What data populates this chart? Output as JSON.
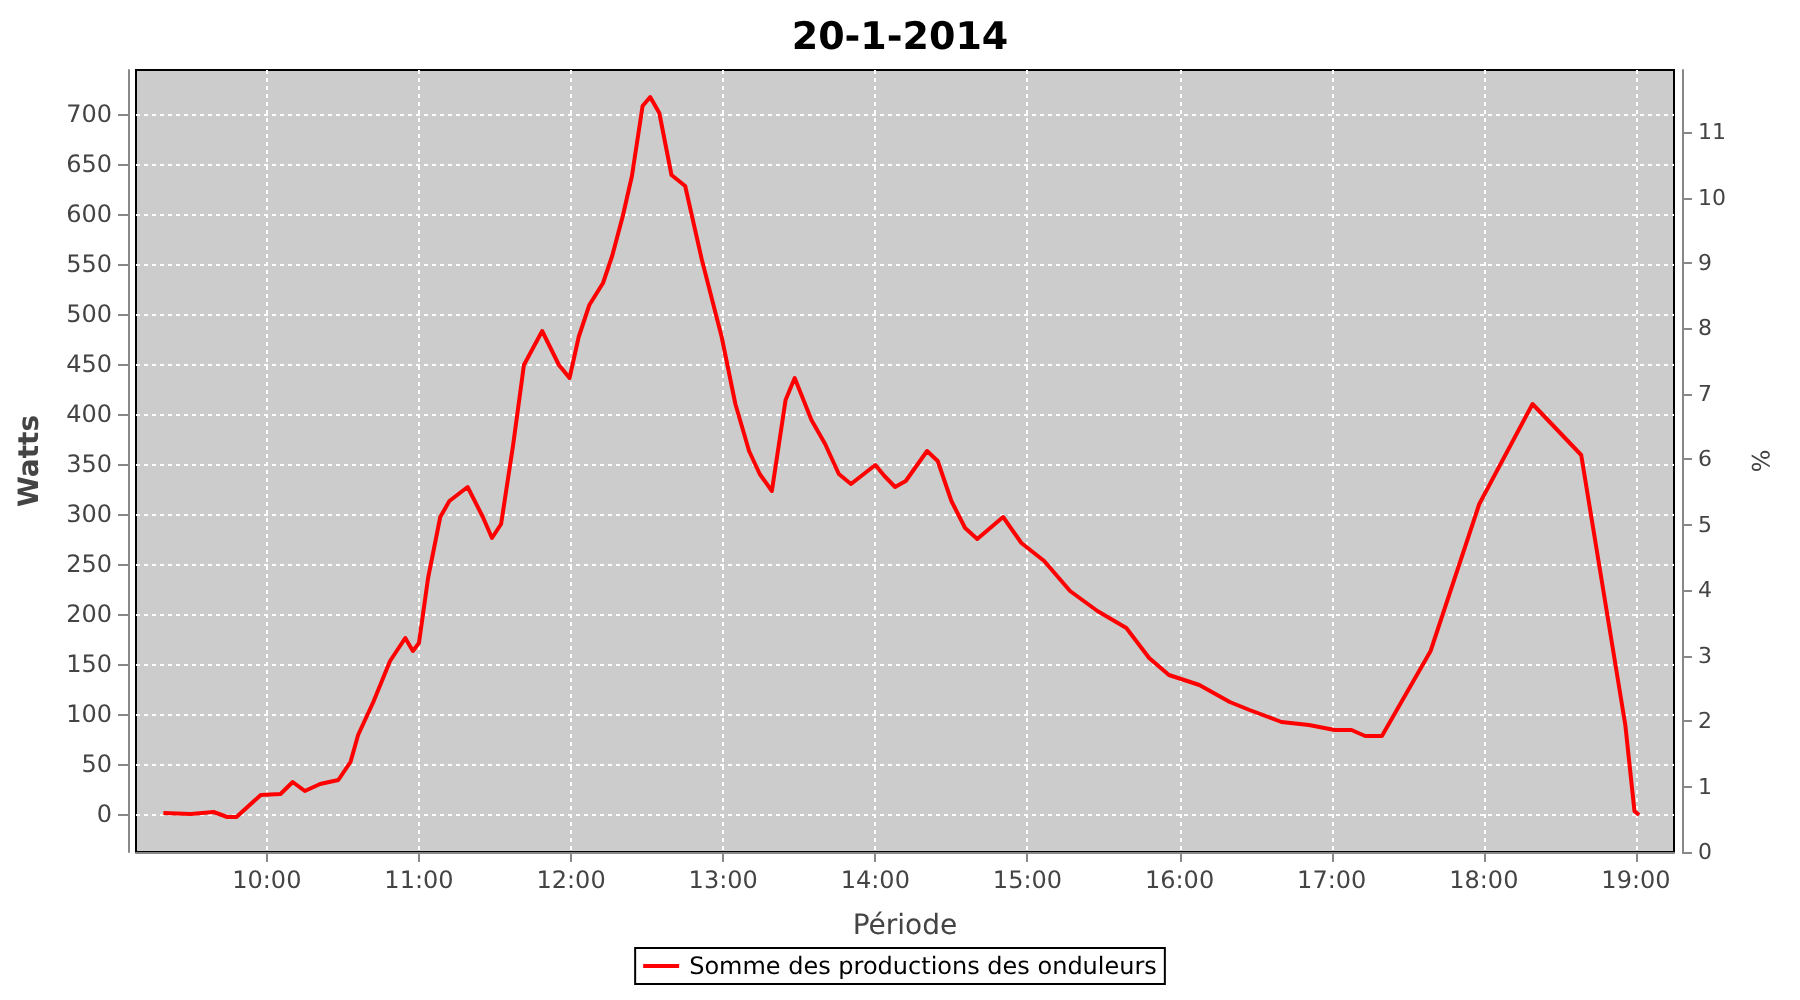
{
  "chart_data": {
    "type": "line",
    "title": "20-1-2014",
    "xlabel": "Période",
    "ylabel": "Watts",
    "y2label": "%",
    "xlim": [
      9.14,
      19.25
    ],
    "xticks": [
      {
        "value": 10,
        "label": "10:00"
      },
      {
        "value": 11,
        "label": "11:00"
      },
      {
        "value": 12,
        "label": "12:00"
      },
      {
        "value": 13,
        "label": "13:00"
      },
      {
        "value": 14,
        "label": "14:00"
      },
      {
        "value": 15,
        "label": "15:00"
      },
      {
        "value": 16,
        "label": "16:00"
      },
      {
        "value": 17,
        "label": "17:00"
      },
      {
        "value": 18,
        "label": "18:00"
      },
      {
        "value": 19,
        "label": "19:00"
      }
    ],
    "ylim": [
      -38,
      744
    ],
    "yticks": [
      0,
      50,
      100,
      150,
      200,
      250,
      300,
      350,
      400,
      450,
      500,
      550,
      600,
      650,
      700
    ],
    "y2lim": [
      0,
      11.95
    ],
    "y2ticks": [
      0,
      1,
      2,
      3,
      4,
      5,
      6,
      7,
      8,
      9,
      10,
      11
    ],
    "grid": true,
    "legend": "bottom",
    "marker": "none",
    "line_style": "solid",
    "series": [
      {
        "name": "Somme des productions des onduleurs",
        "color": "#ff0000",
        "x": [
          9.32,
          9.5,
          9.65,
          9.74,
          9.8,
          9.96,
          10.09,
          10.17,
          10.25,
          10.35,
          10.47,
          10.55,
          10.6,
          10.7,
          10.81,
          10.91,
          10.96,
          11.0,
          11.06,
          11.14,
          11.2,
          11.32,
          11.42,
          11.48,
          11.54,
          11.62,
          11.69,
          11.81,
          11.92,
          11.99,
          12.05,
          12.12,
          12.21,
          12.27,
          12.34,
          12.4,
          12.47,
          12.52,
          12.58,
          12.66,
          12.75,
          12.86,
          12.99,
          13.08,
          13.17,
          13.24,
          13.32,
          13.41,
          13.47,
          13.58,
          13.67,
          13.76,
          13.84,
          14.0,
          14.06,
          14.13,
          14.2,
          14.34,
          14.41,
          14.5,
          14.59,
          14.67,
          14.84,
          14.96,
          15.11,
          15.28,
          15.46,
          15.65,
          15.8,
          15.93,
          16.13,
          16.33,
          16.46,
          16.67,
          16.85,
          17.02,
          17.13,
          17.22,
          17.33,
          17.65,
          17.97,
          18.32,
          18.64,
          18.8,
          18.93,
          18.99,
          19.02
        ],
        "values": [
          1,
          0,
          2,
          -3,
          -3,
          19,
          20,
          32,
          23,
          30,
          34,
          52,
          79,
          112,
          153,
          176,
          163,
          171,
          236,
          297,
          313,
          327,
          297,
          276,
          290,
          370,
          449,
          483,
          449,
          436,
          477,
          509,
          531,
          558,
          598,
          638,
          708,
          717,
          701,
          639,
          628,
          554,
          477,
          410,
          363,
          340,
          323,
          414,
          436,
          394,
          370,
          340,
          330,
          349,
          338,
          327,
          333,
          363,
          353,
          313,
          286,
          275,
          297,
          271,
          253,
          223,
          203,
          186,
          156,
          139,
          129,
          112,
          104,
          92,
          89,
          84,
          84,
          78,
          78,
          163,
          310,
          410,
          359,
          210,
          89,
          3,
          -1
        ]
      }
    ]
  }
}
